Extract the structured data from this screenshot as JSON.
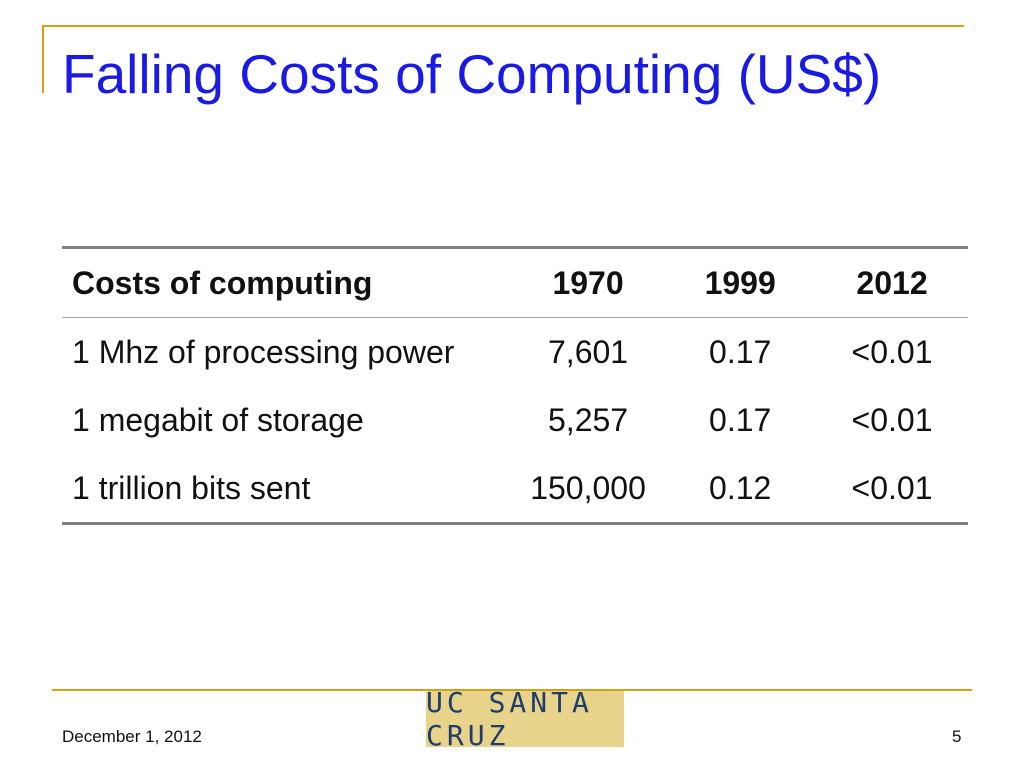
{
  "slide": {
    "title": "Falling Costs of Computing (US$)",
    "footer": {
      "date": "December 1, 2012",
      "page": "5"
    },
    "logo": {
      "text": "UC SANTA CRUZ"
    }
  },
  "table": {
    "headers": [
      "Costs of computing",
      "1970",
      "1999",
      "2012"
    ],
    "rows": [
      [
        "1 Mhz of processing power",
        "7,601",
        "0.17",
        "<0.01"
      ],
      [
        "1 megabit of storage",
        "5,257",
        "0.17",
        "<0.01"
      ],
      [
        "1 trillion bits sent",
        "150,000",
        "0.12",
        "<0.01"
      ]
    ]
  },
  "colors": {
    "title": "#1A1AE6",
    "accent_rule": "#D4A017",
    "table_rule": "#808080",
    "logo_bg": "#E8D38A",
    "logo_text": "#1F3D6B"
  }
}
